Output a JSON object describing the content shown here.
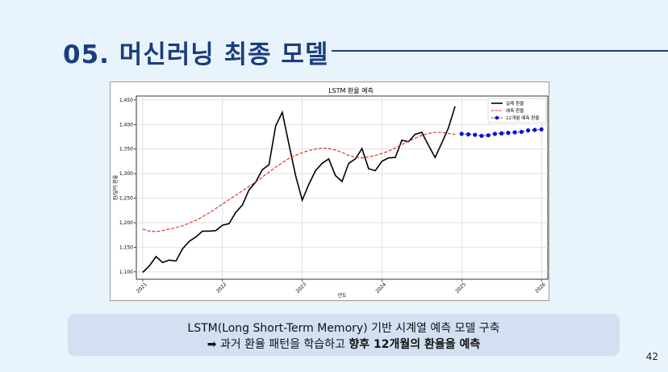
{
  "slide": {
    "title": "05.  머신러닝 최종 모델",
    "caption_line1": "LSTM(Long Short-Term Memory) 기반 시계열 예측 모델 구축",
    "caption_arrow": "➡",
    "caption_line2_plain": " 과거 환율 패턴을 학습하고 ",
    "caption_line2_bold": "향후 12개월의 환율을 예측",
    "page_number": "42"
  },
  "chart_data": {
    "type": "line",
    "title": "LSTM 환율 예측",
    "xlabel": "년도",
    "ylabel": "원/달러 환율",
    "xlim": [
      2020.92,
      2026.08
    ],
    "ylim": [
      1085,
      1458
    ],
    "yticks": [
      1100,
      1150,
      1200,
      1250,
      1300,
      1350,
      1400,
      1450
    ],
    "ytick_labels": [
      "1,100",
      "1,150",
      "1,200",
      "1,250",
      "1,300",
      "1,350",
      "1,400",
      "1,450"
    ],
    "xticks": [
      2021,
      2022,
      2023,
      2024,
      2025,
      2026
    ],
    "xtick_labels": [
      "2021",
      "2022",
      "2023",
      "2024",
      "2025",
      "2026"
    ],
    "grid": true,
    "legend_position": "top-right",
    "series": [
      {
        "name": "실제 환율",
        "color": "#000000",
        "style": "solid",
        "x": [
          2021.0,
          2021.083,
          2021.167,
          2021.25,
          2021.333,
          2021.417,
          2021.5,
          2021.583,
          2021.667,
          2021.75,
          2021.833,
          2021.917,
          2022.0,
          2022.083,
          2022.167,
          2022.25,
          2022.333,
          2022.417,
          2022.5,
          2022.583,
          2022.667,
          2022.75,
          2022.833,
          2022.917,
          2023.0,
          2023.083,
          2023.167,
          2023.25,
          2023.333,
          2023.417,
          2023.5,
          2023.583,
          2023.667,
          2023.75,
          2023.833,
          2023.917,
          2024.0,
          2024.083,
          2024.167,
          2024.25,
          2024.333,
          2024.417,
          2024.5,
          2024.583,
          2024.667,
          2024.75,
          2024.833,
          2024.917
        ],
        "values": [
          1099,
          1112,
          1131,
          1119,
          1124,
          1122,
          1147,
          1162,
          1171,
          1183,
          1183,
          1184,
          1195,
          1198,
          1221,
          1236,
          1267,
          1283,
          1308,
          1318,
          1397,
          1425,
          1360,
          1296,
          1246,
          1278,
          1306,
          1321,
          1330,
          1296,
          1284,
          1321,
          1330,
          1351,
          1310,
          1306,
          1325,
          1332,
          1333,
          1368,
          1365,
          1380,
          1384,
          1358,
          1333,
          1362,
          1393,
          1437
        ]
      },
      {
        "name": "예측 환율",
        "color": "#e0201a",
        "style": "dashed",
        "x": [
          2021.0,
          2021.083,
          2021.167,
          2021.25,
          2021.333,
          2021.417,
          2021.5,
          2021.583,
          2021.667,
          2021.75,
          2021.833,
          2021.917,
          2022.0,
          2022.083,
          2022.167,
          2022.25,
          2022.333,
          2022.417,
          2022.5,
          2022.583,
          2022.667,
          2022.75,
          2022.833,
          2022.917,
          2023.0,
          2023.083,
          2023.167,
          2023.25,
          2023.333,
          2023.417,
          2023.5,
          2023.583,
          2023.667,
          2023.75,
          2023.833,
          2023.917,
          2024.0,
          2024.083,
          2024.167,
          2024.25,
          2024.333,
          2024.417,
          2024.5,
          2024.583,
          2024.667,
          2024.75,
          2024.833,
          2024.917
        ],
        "values": [
          1187,
          1183,
          1182,
          1184,
          1187,
          1190,
          1194,
          1199,
          1205,
          1212,
          1220,
          1229,
          1238,
          1247,
          1256,
          1265,
          1274,
          1283,
          1293,
          1303,
          1313,
          1322,
          1331,
          1337,
          1343,
          1347,
          1350,
          1352,
          1351,
          1348,
          1343,
          1337,
          1333,
          1332,
          1334,
          1337,
          1341,
          1346,
          1352,
          1359,
          1366,
          1372,
          1378,
          1382,
          1384,
          1384,
          1382,
          1380
        ]
      },
      {
        "name": "12개월 예측 환율",
        "color": "#1010d0",
        "style": "dotted-markers",
        "x": [
          2025.0,
          2025.083,
          2025.167,
          2025.25,
          2025.333,
          2025.417,
          2025.5,
          2025.583,
          2025.667,
          2025.75,
          2025.833,
          2025.917,
          2026.0
        ],
        "values": [
          1381,
          1380,
          1379,
          1377,
          1378,
          1381,
          1382,
          1383,
          1384,
          1385,
          1388,
          1389,
          1390
        ]
      }
    ]
  }
}
